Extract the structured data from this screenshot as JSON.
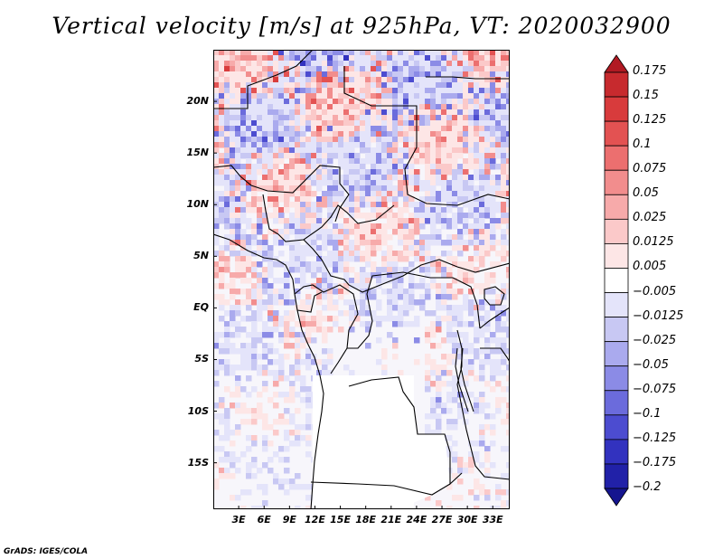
{
  "title": "Vertical velocity [m/s] at 925hPa, VT: 2020032900",
  "footer": "GrADS: IGES/COLA",
  "map": {
    "lon_range": [
      0,
      35
    ],
    "lat_range": [
      -19.5,
      25
    ],
    "lat_ticks": [
      {
        "value": 20,
        "label": "20N"
      },
      {
        "value": 15,
        "label": "15N"
      },
      {
        "value": 10,
        "label": "10N"
      },
      {
        "value": 5,
        "label": "5N"
      },
      {
        "value": 0,
        "label": "EQ"
      },
      {
        "value": -5,
        "label": "5S"
      },
      {
        "value": -10,
        "label": "10S"
      },
      {
        "value": -15,
        "label": "15S"
      }
    ],
    "lon_ticks": [
      {
        "value": 3,
        "label": "3E"
      },
      {
        "value": 6,
        "label": "6E"
      },
      {
        "value": 9,
        "label": "9E"
      },
      {
        "value": 12,
        "label": "12E"
      },
      {
        "value": 15,
        "label": "15E"
      },
      {
        "value": 18,
        "label": "18E"
      },
      {
        "value": 21,
        "label": "21E"
      },
      {
        "value": 24,
        "label": "24E"
      },
      {
        "value": 27,
        "label": "27E"
      },
      {
        "value": 30,
        "label": "30E"
      },
      {
        "value": 33,
        "label": "33E"
      }
    ]
  },
  "colorbar": {
    "levels": [
      "0.175",
      "0.15",
      "0.125",
      "0.1",
      "0.075",
      "0.05",
      "0.025",
      "0.0125",
      "0.005",
      "−0.005",
      "−0.0125",
      "−0.025",
      "−0.05",
      "−0.075",
      "−0.1",
      "−0.125",
      "−0.175",
      "−0.2"
    ],
    "colors": [
      "#b11a23",
      "#c72a2e",
      "#d83b3c",
      "#e35252",
      "#ec6f6f",
      "#f28d8d",
      "#f7aaaa",
      "#fbc9c9",
      "#fde6e6",
      "#ffffff",
      "#e4e4fa",
      "#c8c8f3",
      "#aaaaee",
      "#8b8be6",
      "#6b6bdc",
      "#4c4cd0",
      "#3232bf",
      "#2121a8",
      "#15158f"
    ]
  }
}
